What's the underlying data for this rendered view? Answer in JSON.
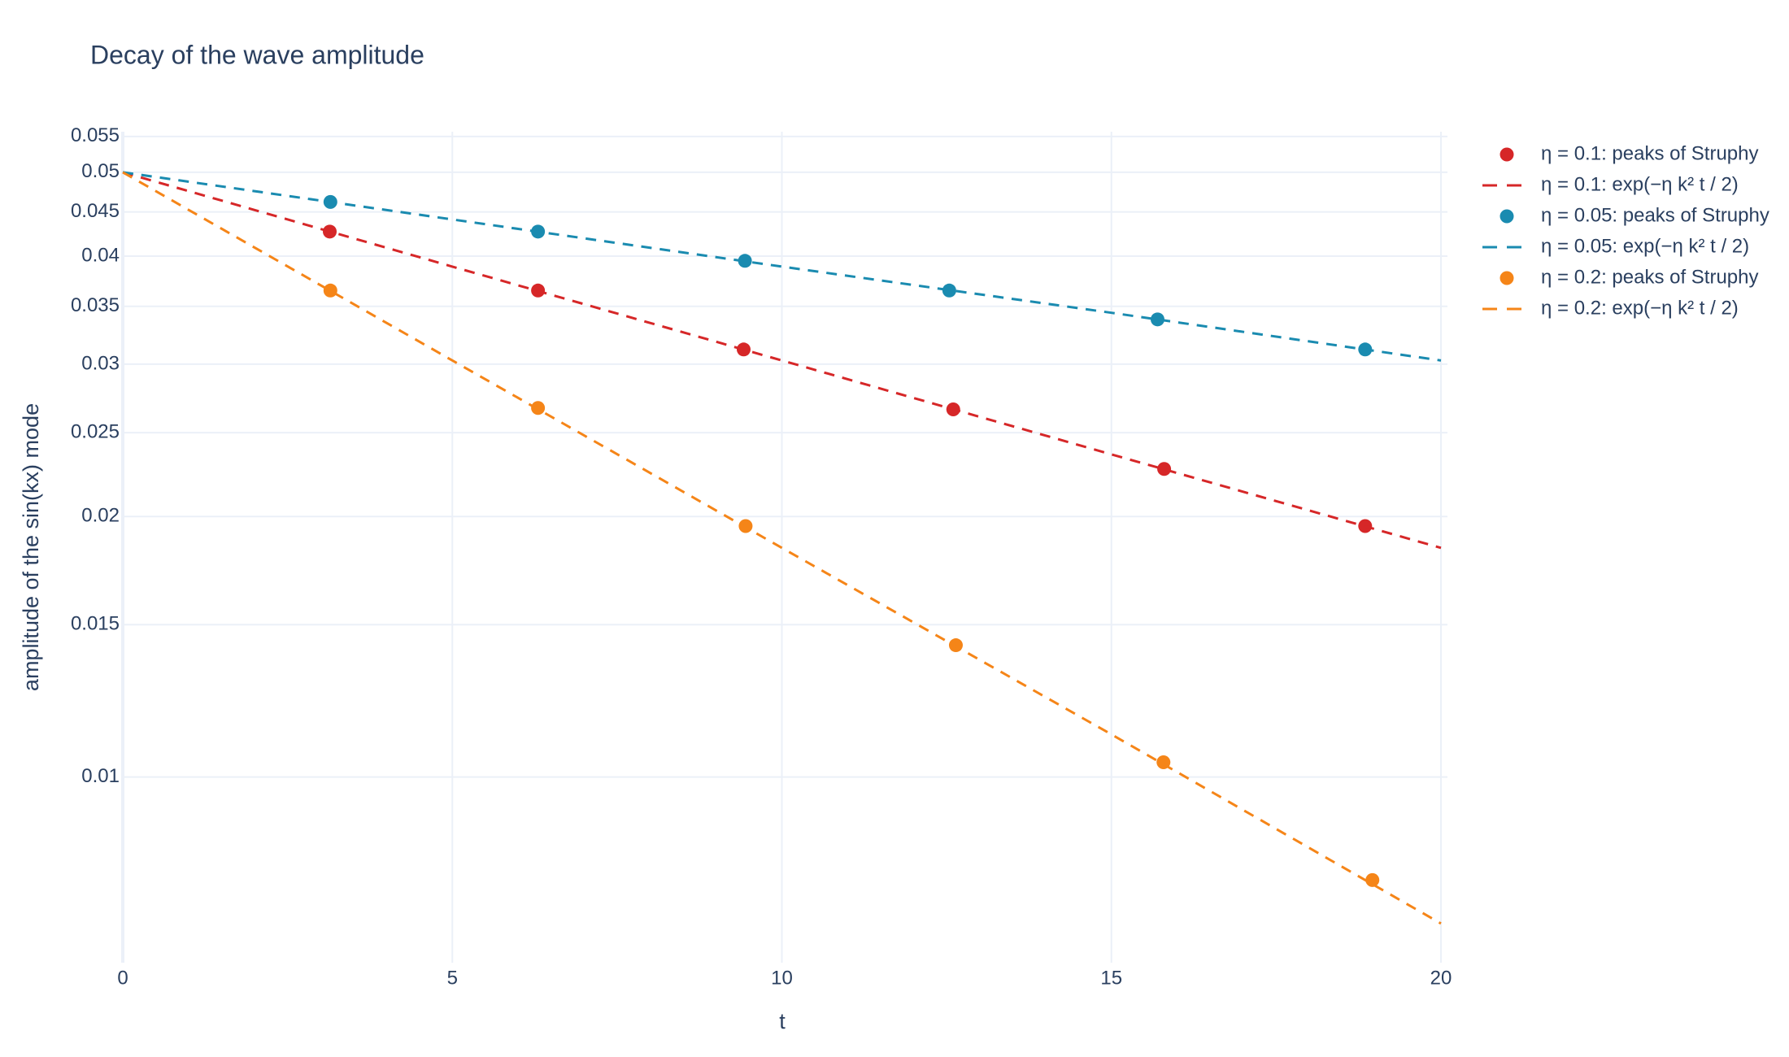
{
  "chart_data": {
    "type": "scatter",
    "title": "Decay of the wave amplitude",
    "x_label": "t",
    "y_label": "amplitude of the sin(kx) mode",
    "xlim": [
      0,
      20
    ],
    "xticks": [
      0,
      5,
      10,
      15,
      20
    ],
    "ylim": [
      0.0061,
      0.0557
    ],
    "y_log": true,
    "yticks": [
      0.01,
      0.015,
      0.02,
      0.025,
      0.03,
      0.035,
      0.04,
      0.045,
      0.05,
      0.055
    ],
    "grid": true,
    "legend": "right",
    "series": [
      {
        "name": "η = 0.1: peaks of Struphy",
        "mode": "markers",
        "color": "#d62728",
        "x": [
          3.14,
          6.3,
          9.42,
          12.6,
          15.8,
          18.85
        ],
        "values": [
          0.0427,
          0.0365,
          0.0312,
          0.0266,
          0.0227,
          0.0195
        ]
      },
      {
        "name": "η = 0.1: exp(−η k² t / 2)",
        "mode": "lines",
        "color": "#d62728",
        "x": [
          0,
          5,
          10,
          15,
          20
        ],
        "values": [
          0.05,
          0.0389,
          0.0303,
          0.0236,
          0.0184
        ]
      },
      {
        "name": "η = 0.05: peaks of Struphy",
        "mode": "markers",
        "color": "#1a8bb0",
        "x": [
          3.15,
          6.3,
          9.44,
          12.54,
          15.7,
          18.85
        ],
        "values": [
          0.0462,
          0.0427,
          0.0395,
          0.0365,
          0.0338,
          0.0312
        ]
      },
      {
        "name": "η = 0.05: exp(−η k² t / 2)",
        "mode": "lines",
        "color": "#1a8bb0",
        "x": [
          0,
          5,
          10,
          15,
          20
        ],
        "values": [
          0.05,
          0.0441,
          0.0389,
          0.0344,
          0.0303
        ]
      },
      {
        "name": "η = 0.2: peaks of Struphy",
        "mode": "markers",
        "color": "#f58518",
        "x": [
          3.15,
          6.3,
          9.45,
          12.64,
          15.79,
          18.96
        ],
        "values": [
          0.0365,
          0.0267,
          0.0195,
          0.0142,
          0.0104,
          0.0076
        ]
      },
      {
        "name": "η = 0.2: exp(−η k² t / 2)",
        "mode": "lines",
        "color": "#f58518",
        "x": [
          0,
          5,
          10,
          15,
          20
        ],
        "values": [
          0.05,
          0.0303,
          0.0184,
          0.0112,
          0.00677
        ]
      }
    ]
  }
}
